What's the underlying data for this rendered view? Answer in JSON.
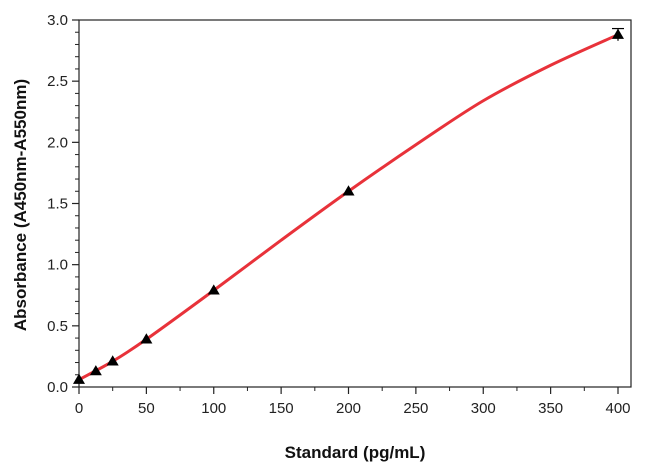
{
  "chart_data": {
    "type": "scatter",
    "xlabel": "Standard (pg/mL)",
    "ylabel": "Absorbance (A450nm-A550nm)",
    "xlim": [
      0,
      400
    ],
    "ylim": [
      0,
      3.0
    ],
    "x_ticks": [
      "0",
      "50",
      "100",
      "150",
      "200",
      "250",
      "300",
      "350",
      "400"
    ],
    "y_ticks": [
      "0.0",
      "0.5",
      "1.0",
      "1.5",
      "2.0",
      "2.5",
      "3.0"
    ],
    "grid": false,
    "legend": "none",
    "colors": {
      "curve": "#e8323a",
      "marker": "#000000",
      "axis": "#222222"
    },
    "series": [
      {
        "marker": "triangle",
        "x": [
          0,
          12.5,
          25,
          50,
          100,
          200,
          400
        ],
        "y": [
          0.06,
          0.13,
          0.21,
          0.39,
          0.79,
          1.6,
          2.88
        ],
        "error": [
          0,
          0,
          0,
          0,
          0,
          0,
          0.05
        ]
      }
    ],
    "fit_curve": {
      "x": [
        0,
        25,
        50,
        100,
        150,
        200,
        250,
        300,
        350,
        400
      ],
      "y": [
        0.06,
        0.21,
        0.39,
        0.79,
        1.2,
        1.6,
        1.98,
        2.34,
        2.63,
        2.88
      ]
    }
  }
}
